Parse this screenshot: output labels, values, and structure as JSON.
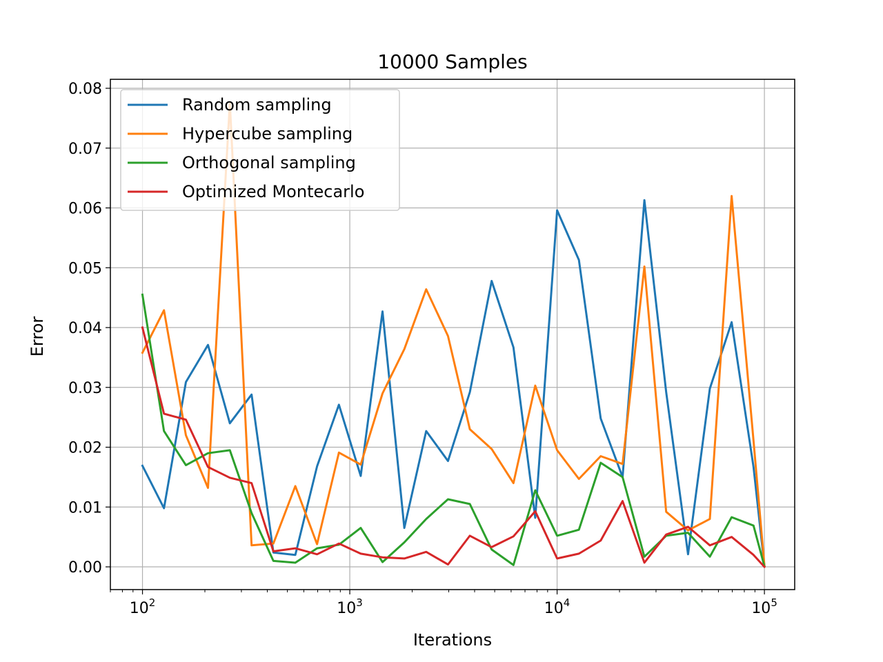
{
  "chart_data": {
    "type": "line",
    "title": "10000 Samples",
    "xlabel": "Iterations",
    "ylabel": "Error",
    "xscale": "log",
    "xlim": [
      70,
      140000
    ],
    "ylim": [
      -0.0038,
      0.0815
    ],
    "grid": true,
    "legend_position": "top-left",
    "x_ticks": [
      {
        "value": 100,
        "base": "10",
        "exp": "2"
      },
      {
        "value": 1000,
        "base": "10",
        "exp": "3"
      },
      {
        "value": 10000,
        "base": "10",
        "exp": "4"
      },
      {
        "value": 100000,
        "base": "10",
        "exp": "5"
      }
    ],
    "y_ticks": [
      {
        "value": 0.0,
        "label": "0.00"
      },
      {
        "value": 0.01,
        "label": "0.01"
      },
      {
        "value": 0.02,
        "label": "0.02"
      },
      {
        "value": 0.03,
        "label": "0.03"
      },
      {
        "value": 0.04,
        "label": "0.04"
      },
      {
        "value": 0.05,
        "label": "0.05"
      },
      {
        "value": 0.06,
        "label": "0.06"
      },
      {
        "value": 0.07,
        "label": "0.07"
      },
      {
        "value": 0.08,
        "label": "0.08"
      }
    ],
    "x": [
      100,
      127,
      162,
      207,
      264,
      336,
      428,
      546,
      695,
      886,
      1129,
      1438,
      1833,
      2336,
      2976,
      3793,
      4833,
      6158,
      7847,
      10000,
      12743,
      16238,
      20691,
      26367,
      33598,
      42813,
      54556,
      69519,
      88587,
      100000
    ],
    "series": [
      {
        "name": "Random sampling",
        "color": "#1f77b4",
        "values": [
          0.0169,
          0.0098,
          0.0309,
          0.0371,
          0.024,
          0.0288,
          0.0024,
          0.002,
          0.0168,
          0.0271,
          0.0152,
          0.0427,
          0.0065,
          0.0227,
          0.0177,
          0.0292,
          0.0478,
          0.0367,
          0.0082,
          0.0596,
          0.0513,
          0.0248,
          0.015,
          0.0613,
          0.0292,
          0.0021,
          0.0298,
          0.0409,
          0.0167,
          0.0001
        ]
      },
      {
        "name": "Hypercube sampling",
        "color": "#ff7f0e",
        "values": [
          0.0358,
          0.0429,
          0.022,
          0.0132,
          0.0776,
          0.0036,
          0.0039,
          0.0135,
          0.0038,
          0.0191,
          0.0171,
          0.029,
          0.0364,
          0.0464,
          0.0386,
          0.023,
          0.0197,
          0.014,
          0.0303,
          0.0195,
          0.0147,
          0.0185,
          0.0172,
          0.0502,
          0.0092,
          0.0061,
          0.008,
          0.062,
          0.0211,
          0.0002
        ]
      },
      {
        "name": "Orthogonal sampling",
        "color": "#2ca02c",
        "values": [
          0.0455,
          0.0227,
          0.017,
          0.019,
          0.0195,
          0.009,
          0.001,
          0.0007,
          0.0031,
          0.0037,
          0.0065,
          0.0008,
          0.0041,
          0.008,
          0.0113,
          0.0105,
          0.0029,
          0.0003,
          0.0128,
          0.0052,
          0.0062,
          0.0174,
          0.015,
          0.0017,
          0.0052,
          0.0057,
          0.0017,
          0.0083,
          0.0069,
          0.0001
        ]
      },
      {
        "name": "Optimized Montecarlo",
        "color": "#d62728",
        "values": [
          0.04,
          0.0256,
          0.0246,
          0.0167,
          0.0149,
          0.014,
          0.0026,
          0.0031,
          0.0021,
          0.0039,
          0.0022,
          0.0016,
          0.0014,
          0.0025,
          0.0004,
          0.0052,
          0.0033,
          0.0051,
          0.0093,
          0.0014,
          0.0022,
          0.0044,
          0.011,
          0.0007,
          0.0054,
          0.0067,
          0.0036,
          0.005,
          0.002,
          0.0
        ]
      }
    ]
  }
}
